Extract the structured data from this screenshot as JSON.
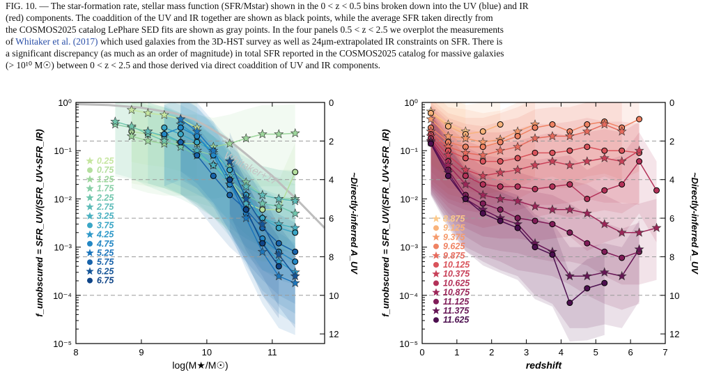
{
  "caption": {
    "line0": "FIG. 10. — The star-formation rate, stellar mass function (SFR/Mstar) shown in the 0 < z < 0.5 bins broken down into the UV (blue) and IR",
    "line1": "(red) components. The coaddition of the UV and IR together are shown as black points, while the average SFR taken directly from",
    "line2": "the COSMOS2025 catalog LePhare SED fits are shown as gray points. In the four panels 0.5 < z < 2.5 we overplot the measurements",
    "line3_pre": "of ",
    "line3_cite": "Whitaker et al. (2017)",
    "line3_post": " which used galaxies from the 3D-HST survey as well as 24μm-extrapolated IR constraints on SFR. There is",
    "line4": "a significant discrepancy (as much as an order of magnitude) in total SFR reported in the COSMOS2025 catalog for massive galaxies",
    "line5": "(> 10¹⁰ M☉) between 0 < z < 2.5 and those derived via direct coaddition of UV and IR components."
  },
  "chart_data": [
    {
      "type": "line",
      "panel": "left",
      "xlabel": "log(M★/M☉)",
      "ylabel": "f_unobscured = SFR_UV/(SFR_UV+SFR_IR)",
      "y2label": "~Directly-inferred A_UV",
      "xlim": [
        8.0,
        11.8
      ],
      "ylim": [
        1e-05,
        1.0
      ],
      "y_scale": "log",
      "xticks": [
        "8",
        "9",
        "10",
        "11"
      ],
      "yticks": [
        "10⁰",
        "10⁻¹",
        "10⁻²",
        "10⁻³",
        "10⁻⁴",
        "10⁻⁵"
      ],
      "y2ticks": [
        "0",
        "2",
        "4",
        "6",
        "8",
        "10",
        "12"
      ],
      "grid": "dashed horizontal at A_UV = 0, 2, 4, 6, 8, 10",
      "reference_curve": {
        "label": "Whitaker+17",
        "color": "#bdbdbd",
        "x": [
          8.0,
          8.5,
          9.0,
          9.5,
          9.8,
          10.0,
          10.3,
          10.6,
          11.0,
          11.4,
          11.8
        ],
        "y": [
          0.92,
          0.88,
          0.78,
          0.6,
          0.45,
          0.32,
          0.18,
          0.085,
          0.03,
          0.009,
          0.0025
        ]
      },
      "legend_position": "left",
      "series": [
        {
          "name": "0.25",
          "marker": "star",
          "color": "#c6e6a0",
          "x": [
            8.85,
            9.1,
            9.35,
            9.6,
            9.85
          ],
          "y": [
            0.7,
            0.6,
            0.55,
            0.45,
            0.3
          ]
        },
        {
          "name": "0.75",
          "marker": "circle",
          "color": "#b4df9e",
          "x": [
            8.85,
            9.1,
            9.35,
            9.6,
            9.85,
            10.1,
            10.35,
            10.6,
            10.85,
            11.1,
            11.35
          ],
          "y": [
            0.25,
            0.22,
            0.2,
            0.15,
            0.09,
            0.05,
            0.025,
            0.008,
            0.006,
            0.006,
            0.036
          ]
        },
        {
          "name": "1.25",
          "marker": "star",
          "color": "#9dd69c",
          "x": [
            8.85,
            9.1,
            9.35,
            9.6,
            9.85,
            10.1,
            10.35,
            10.6,
            10.85,
            11.1,
            11.35
          ],
          "y": [
            0.2,
            0.16,
            0.14,
            0.14,
            0.14,
            0.12,
            0.14,
            0.18,
            0.22,
            0.22,
            0.23
          ]
        },
        {
          "name": "1.75",
          "marker": "star",
          "color": "#88cfa6",
          "x": [
            8.6,
            8.85,
            9.1,
            9.35,
            9.6,
            9.85,
            10.1,
            10.35,
            10.6,
            10.85,
            11.1,
            11.35
          ],
          "y": [
            0.35,
            0.3,
            0.25,
            0.2,
            0.14,
            0.1,
            0.08,
            0.045,
            0.022,
            0.012,
            0.01,
            0.01
          ]
        },
        {
          "name": "2.25",
          "marker": "star",
          "color": "#70c6ad",
          "x": [
            8.6,
            8.85,
            9.1,
            9.35,
            9.6,
            9.85,
            10.1,
            10.35,
            10.6,
            10.85,
            11.1,
            11.35
          ],
          "y": [
            0.4,
            0.32,
            0.22,
            0.16,
            0.12,
            0.08,
            0.05,
            0.025,
            0.012,
            0.008,
            0.007,
            0.005
          ]
        },
        {
          "name": "2.75",
          "marker": "star",
          "color": "#5ebcb9",
          "x": [
            9.1,
            9.35,
            9.6,
            9.85,
            10.1,
            10.35,
            10.6,
            10.85,
            11.1,
            11.35
          ],
          "y": [
            0.25,
            0.2,
            0.15,
            0.09,
            0.05,
            0.03,
            0.018,
            0.012,
            0.01,
            0.009
          ]
        },
        {
          "name": "3.25",
          "marker": "star",
          "color": "#4ab1c1",
          "x": [
            9.35,
            9.6,
            9.85,
            10.1,
            10.35,
            10.6,
            10.85,
            11.1,
            11.35
          ],
          "y": [
            0.22,
            0.15,
            0.1,
            0.05,
            0.02,
            0.008,
            0.004,
            0.003,
            0.0025
          ]
        },
        {
          "name": "3.75",
          "marker": "circle",
          "color": "#3aa6c6",
          "x": [
            9.35,
            9.6,
            9.85,
            10.1,
            10.35,
            10.6,
            10.85,
            11.1,
            11.35
          ],
          "y": [
            0.3,
            0.22,
            0.15,
            0.1,
            0.04,
            0.012,
            0.004,
            0.0025,
            0.002
          ]
        },
        {
          "name": "4.25",
          "marker": "star",
          "color": "#2d98c8",
          "x": [
            9.6,
            9.85,
            10.1,
            10.35,
            10.6,
            10.85,
            11.1,
            11.35
          ],
          "y": [
            0.35,
            0.2,
            0.09,
            0.025,
            0.006,
            0.0012,
            0.0005,
            0.0003
          ]
        },
        {
          "name": "4.75",
          "marker": "circle",
          "color": "#2387c4",
          "x": [
            9.35,
            9.6,
            9.85,
            10.1,
            10.35,
            10.6,
            10.85,
            11.1,
            11.35
          ],
          "y": [
            0.22,
            0.3,
            0.2,
            0.08,
            0.02,
            0.005,
            0.0015,
            0.0008,
            0.0005
          ]
        },
        {
          "name": "5.25",
          "marker": "star",
          "color": "#1c75bb",
          "x": [
            9.6,
            9.85,
            10.1,
            10.35,
            10.6,
            10.85,
            11.1,
            11.35
          ],
          "y": [
            0.45,
            0.25,
            0.1,
            0.025,
            0.004,
            0.0008,
            0.00025,
            0.00018
          ]
        },
        {
          "name": "5.75",
          "marker": "circle",
          "color": "#1863aa",
          "x": [
            9.6,
            9.85,
            10.1,
            10.35,
            10.6,
            10.85,
            11.1,
            11.35
          ],
          "y": [
            0.15,
            0.08,
            0.03,
            0.012,
            0.006,
            0.0025,
            0.0012,
            0.0008
          ]
        },
        {
          "name": "6.25",
          "marker": "star",
          "color": "#145497",
          "x": [
            10.35,
            10.6,
            10.85,
            11.1,
            11.35
          ],
          "y": [
            0.06,
            0.01,
            0.003,
            0.0007,
            0.00025
          ]
        },
        {
          "name": "6.75",
          "marker": "circle",
          "color": "#0f4588",
          "x": [
            10.35,
            10.6,
            10.85,
            11.1
          ],
          "y": [
            0.025,
            0.006,
            0.0012,
            0.0004
          ]
        }
      ]
    },
    {
      "type": "line",
      "panel": "right",
      "xlabel": "redshift",
      "ylabel": "f_unobscured = SFR_UV/(SFR_UV+SFR_IR)",
      "y2label": "~Directly-inferred A_UV",
      "xlim": [
        0,
        7
      ],
      "ylim": [
        1e-05,
        1.0
      ],
      "y_scale": "log",
      "xticks": [
        "0",
        "1",
        "2",
        "3",
        "4",
        "5",
        "6",
        "7"
      ],
      "yticks": [
        "10⁰",
        "10⁻¹",
        "10⁻²",
        "10⁻³",
        "10⁻⁴",
        "10⁻⁵"
      ],
      "y2ticks": [
        "0",
        "2",
        "4",
        "6",
        "8",
        "10",
        "12"
      ],
      "grid": "dashed horizontal at A_UV = 0, 2, 4, 6, 8, 10",
      "legend_position": "left",
      "series": [
        {
          "name": "8.875",
          "marker": "star",
          "color": "#fcc98a",
          "x": [
            0.25,
            0.75,
            1.25
          ],
          "y": [
            0.65,
            0.35,
            0.25
          ]
        },
        {
          "name": "9.125",
          "marker": "circle",
          "color": "#f9b37a",
          "x": [
            0.25,
            0.75,
            1.25,
            1.75,
            2.25
          ],
          "y": [
            0.6,
            0.32,
            0.22,
            0.25,
            0.35
          ]
        },
        {
          "name": "9.375",
          "marker": "star",
          "color": "#f59a6c",
          "x": [
            0.25,
            0.75,
            1.25,
            1.75,
            2.25,
            2.75,
            3.25
          ],
          "y": [
            0.45,
            0.2,
            0.18,
            0.15,
            0.17,
            0.25,
            0.35
          ]
        },
        {
          "name": "9.625",
          "marker": "circle",
          "color": "#ef8262",
          "x": [
            0.25,
            0.75,
            1.25,
            1.75,
            2.25,
            2.75,
            3.25,
            3.75,
            4.25,
            4.75,
            5.25,
            5.75,
            6.25
          ],
          "y": [
            0.3,
            0.15,
            0.12,
            0.12,
            0.15,
            0.2,
            0.3,
            0.35,
            0.25,
            0.35,
            0.4,
            0.3,
            0.45
          ]
        },
        {
          "name": "9.875",
          "marker": "star",
          "color": "#e66a5c",
          "x": [
            0.25,
            0.75,
            1.25,
            1.75,
            2.25,
            2.75,
            3.25,
            3.75,
            4.25,
            4.75,
            5.25,
            5.75
          ],
          "y": [
            0.25,
            0.12,
            0.09,
            0.08,
            0.1,
            0.12,
            0.18,
            0.2,
            0.2,
            0.25,
            0.35,
            0.25
          ]
        },
        {
          "name": "10.125",
          "marker": "circle",
          "color": "#d9535b",
          "x": [
            0.25,
            0.75,
            1.25,
            1.75,
            2.25,
            2.75,
            3.25,
            3.75,
            4.25,
            4.75,
            5.25,
            5.75,
            6.25
          ],
          "y": [
            0.22,
            0.1,
            0.07,
            0.06,
            0.06,
            0.07,
            0.09,
            0.09,
            0.1,
            0.12,
            0.1,
            0.1,
            0.09
          ]
        },
        {
          "name": "10.375",
          "marker": "star",
          "color": "#c84058",
          "x": [
            0.25,
            0.75,
            1.25,
            1.75,
            2.25,
            2.75,
            3.25,
            3.75,
            4.25,
            4.75,
            5.25,
            5.75,
            6.25
          ],
          "y": [
            0.2,
            0.08,
            0.04,
            0.03,
            0.035,
            0.04,
            0.05,
            0.06,
            0.05,
            0.06,
            0.07,
            0.06,
            0.1
          ]
        },
        {
          "name": "10.625",
          "marker": "circle",
          "color": "#b33158",
          "x": [
            0.25,
            0.75,
            1.25,
            1.75,
            2.25,
            2.75,
            3.25,
            3.75,
            4.25,
            4.75,
            5.25,
            5.75,
            6.25,
            6.75
          ],
          "y": [
            0.18,
            0.06,
            0.03,
            0.02,
            0.018,
            0.018,
            0.016,
            0.018,
            0.02,
            0.01,
            0.015,
            0.02,
            0.06,
            0.015
          ]
        },
        {
          "name": "10.875",
          "marker": "star",
          "color": "#9c2558",
          "x": [
            0.25,
            0.75,
            1.25,
            1.75,
            2.25,
            2.75,
            3.25,
            3.75,
            4.25,
            4.75,
            5.25,
            5.75,
            6.25,
            6.75
          ],
          "y": [
            0.16,
            0.05,
            0.02,
            0.012,
            0.01,
            0.009,
            0.007,
            0.006,
            0.006,
            0.005,
            0.003,
            0.002,
            0.002,
            0.0025
          ]
        },
        {
          "name": "11.125",
          "marker": "circle",
          "color": "#801c58",
          "x": [
            0.25,
            0.75,
            1.25,
            1.75,
            2.25,
            2.75,
            3.25,
            3.75,
            4.25,
            4.75,
            5.25,
            5.75,
            6.25
          ],
          "y": [
            0.15,
            0.04,
            0.012,
            0.008,
            0.006,
            0.004,
            0.0035,
            0.003,
            0.002,
            0.0012,
            0.0008,
            0.0006,
            0.0008
          ]
        },
        {
          "name": "11.375",
          "marker": "star",
          "color": "#651555",
          "x": [
            0.25,
            0.75,
            1.25,
            1.75,
            2.25,
            2.75,
            3.25,
            3.75,
            4.25,
            4.75,
            5.25,
            5.75,
            6.25
          ],
          "y": [
            0.15,
            0.035,
            0.01,
            0.006,
            0.004,
            0.003,
            0.0012,
            0.0008,
            0.00025,
            0.00025,
            0.0003,
            0.00025,
            0.0009
          ]
        },
        {
          "name": "11.625",
          "marker": "circle",
          "color": "#4c0f4f",
          "x": [
            0.25,
            0.75,
            1.25,
            1.75,
            2.25,
            2.75,
            3.25,
            3.75,
            4.25,
            4.75,
            5.25
          ],
          "y": [
            0.14,
            0.03,
            0.01,
            0.005,
            0.0035,
            0.0025,
            0.001,
            0.0007,
            7e-05,
            0.00014,
            0.00018
          ]
        }
      ]
    }
  ],
  "colors": {
    "axis": "#000000",
    "grid": "#9a9a9a",
    "reference_curve": "#bdbdbd"
  }
}
